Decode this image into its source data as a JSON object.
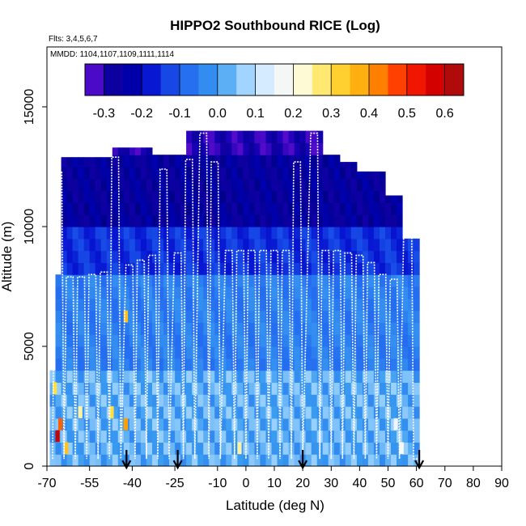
{
  "chart_data": {
    "type": "heatmap",
    "title": "HIPPO2 Southbound RICE (Log)",
    "flights_note": "Flts: 3,4,5,6,7",
    "dates_note": "MMDD: 1104,1107,1109,1111,1114",
    "xlabel": "Latitude (deg N)",
    "ylabel": "Altitude (m)",
    "xlim": [
      -70,
      90
    ],
    "ylim": [
      0,
      17500
    ],
    "x_tick_labels": [
      "-70",
      "-55",
      "-40",
      "-25",
      "-10",
      "0",
      "10",
      "20",
      "30",
      "40",
      "50",
      "60",
      "70",
      "80",
      "90"
    ],
    "x_tick_positions": [
      -70,
      -55,
      -40,
      -25,
      -10,
      0,
      10,
      20,
      30,
      40,
      50,
      60,
      70,
      80,
      90
    ],
    "y_ticks": [
      0,
      5000,
      10000,
      15000
    ],
    "colorbar": {
      "range": [
        -0.35,
        0.65
      ],
      "tick_labels": [
        "-0.3",
        "-0.2",
        "-0.1",
        "0.0",
        "0.1",
        "0.2",
        "0.3",
        "0.4",
        "0.5",
        "0.6"
      ],
      "tick_values": [
        -0.3,
        -0.2,
        -0.1,
        0.0,
        0.1,
        0.2,
        0.3,
        0.4,
        0.5,
        0.6
      ],
      "stops": [
        {
          "v": -0.35,
          "c": "#7b14d6"
        },
        {
          "v": -0.3,
          "c": "#1a00b8"
        },
        {
          "v": -0.25,
          "c": "#00008b"
        },
        {
          "v": -0.2,
          "c": "#0000c8"
        },
        {
          "v": -0.1,
          "c": "#1e60f0"
        },
        {
          "v": 0.0,
          "c": "#3a9cf0"
        },
        {
          "v": 0.08,
          "c": "#a8d8ff"
        },
        {
          "v": 0.15,
          "c": "#eef6ff"
        },
        {
          "v": 0.22,
          "c": "#fffce0"
        },
        {
          "v": 0.3,
          "c": "#ffe040"
        },
        {
          "v": 0.4,
          "c": "#ffa000"
        },
        {
          "v": 0.5,
          "c": "#ff2000"
        },
        {
          "v": 0.58,
          "c": "#d00000"
        },
        {
          "v": 0.65,
          "c": "#a01010"
        }
      ]
    },
    "flight_date_markers_latitude": [
      -42,
      -24,
      20,
      61
    ],
    "approx_value_by_altitude_band": [
      {
        "alt_range": [
          0,
          4000
        ],
        "value": 0.0,
        "note": "mostly near 0 with local positive patches up to 0.6"
      },
      {
        "alt_range": [
          4000,
          8000
        ],
        "value": -0.05
      },
      {
        "alt_range": [
          8000,
          10000
        ],
        "value": -0.15
      },
      {
        "alt_range": [
          10000,
          13000
        ],
        "value": -0.25
      },
      {
        "alt_range": [
          13000,
          14000
        ],
        "value": -0.3
      }
    ],
    "flight_track_profiles_max_altitude_m": [
      {
        "lat": -66,
        "alt": 12300
      },
      {
        "lat": -62,
        "alt": 7900
      },
      {
        "lat": -58,
        "alt": 7900
      },
      {
        "lat": -54,
        "alt": 8000
      },
      {
        "lat": -50,
        "alt": 8100
      },
      {
        "lat": -46,
        "alt": 12900
      },
      {
        "lat": -41,
        "alt": 8400
      },
      {
        "lat": -37,
        "alt": 8600
      },
      {
        "lat": -33,
        "alt": 8800
      },
      {
        "lat": -29,
        "alt": 12400
      },
      {
        "lat": -24,
        "alt": 8900
      },
      {
        "lat": -20,
        "alt": 12800
      },
      {
        "lat": -15,
        "alt": 13900
      },
      {
        "lat": -11,
        "alt": 12700
      },
      {
        "lat": -6,
        "alt": 9000
      },
      {
        "lat": -2,
        "alt": 9000
      },
      {
        "lat": 2,
        "alt": 9000
      },
      {
        "lat": 6,
        "alt": 9000
      },
      {
        "lat": 10,
        "alt": 9000
      },
      {
        "lat": 14,
        "alt": 9000
      },
      {
        "lat": 18,
        "alt": 12700
      },
      {
        "lat": 24,
        "alt": 13900
      },
      {
        "lat": 28,
        "alt": 9000
      },
      {
        "lat": 32,
        "alt": 9000
      },
      {
        "lat": 36,
        "alt": 8900
      },
      {
        "lat": 40,
        "alt": 8800
      },
      {
        "lat": 44,
        "alt": 8500
      },
      {
        "lat": 48,
        "alt": 8000
      },
      {
        "lat": 52,
        "alt": 7800
      },
      {
        "lat": 57,
        "alt": 11600
      }
    ]
  }
}
